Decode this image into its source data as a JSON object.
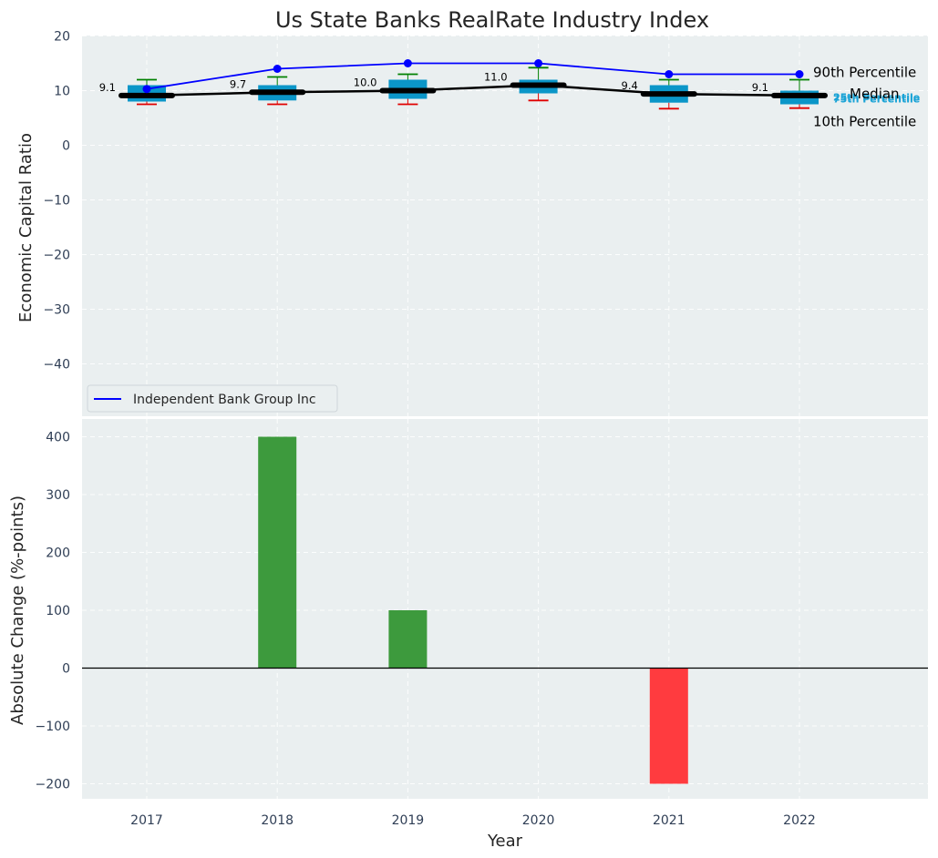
{
  "chart_data": [
    {
      "type": "box",
      "title": "Us State Banks RealRate Industry Index",
      "xlabel": "",
      "ylabel": "Economic Capital Ratio",
      "ylim": [
        -50,
        20
      ],
      "yticks": [
        20,
        10,
        0,
        -10,
        -20,
        -30,
        -40
      ],
      "categories": [
        "2017",
        "2018",
        "2019",
        "2020",
        "2021",
        "2022"
      ],
      "grid": true,
      "legend_position": "lower-left",
      "boxes": [
        {
          "year": "2017",
          "p10": 7.5,
          "p25": 8.0,
          "median": 9.1,
          "p75": 11.0,
          "p90": 12.0
        },
        {
          "year": "2018",
          "p10": 7.5,
          "p25": 8.2,
          "median": 9.7,
          "p75": 11.0,
          "p90": 12.5
        },
        {
          "year": "2019",
          "p10": 7.5,
          "p25": 8.5,
          "median": 10.0,
          "p75": 12.0,
          "p90": 13.0
        },
        {
          "year": "2020",
          "p10": 8.2,
          "p25": 9.5,
          "median": 11.0,
          "p75": 12.0,
          "p90": 14.2
        },
        {
          "year": "2021",
          "p10": 6.7,
          "p25": 7.8,
          "median": 9.4,
          "p75": 11.0,
          "p90": 12.0
        },
        {
          "year": "2022",
          "p10": 6.8,
          "p25": 7.5,
          "median": 9.1,
          "p75": 10.0,
          "p90": 12.0
        }
      ],
      "median_labels": [
        "9.1",
        "9.7",
        "10.0",
        "11.0",
        "9.4",
        "9.1"
      ],
      "series": [
        {
          "name": "Independent Bank Group Inc",
          "color": "#0000ff",
          "values": [
            10.3,
            14.0,
            15.0,
            15.0,
            13.0,
            13.0
          ]
        }
      ],
      "annotations": {
        "p90": "90th Percentile",
        "p75": "75th Percentile",
        "median": "Median",
        "p25": "25th Percentile",
        "p10": "10th Percentile"
      },
      "colors": {
        "box": "#0b96c8",
        "median": "#000000",
        "whisker_high": "#008000",
        "whisker_low": "#e00000",
        "company": "#0000ff",
        "background": "#eaeff0"
      }
    },
    {
      "type": "bar",
      "xlabel": "Year",
      "ylabel": "Absolute Change (%-points)",
      "categories": [
        "2017",
        "2018",
        "2019",
        "2020",
        "2021",
        "2022"
      ],
      "values": [
        0,
        400,
        100,
        0,
        -200,
        0
      ],
      "ylim": [
        -230,
        430
      ],
      "yticks": [
        400,
        300,
        200,
        100,
        0,
        -100,
        -200
      ],
      "grid": true,
      "colors": {
        "positive": "#3d9a3d",
        "negative": "#ff3b3f"
      }
    }
  ]
}
